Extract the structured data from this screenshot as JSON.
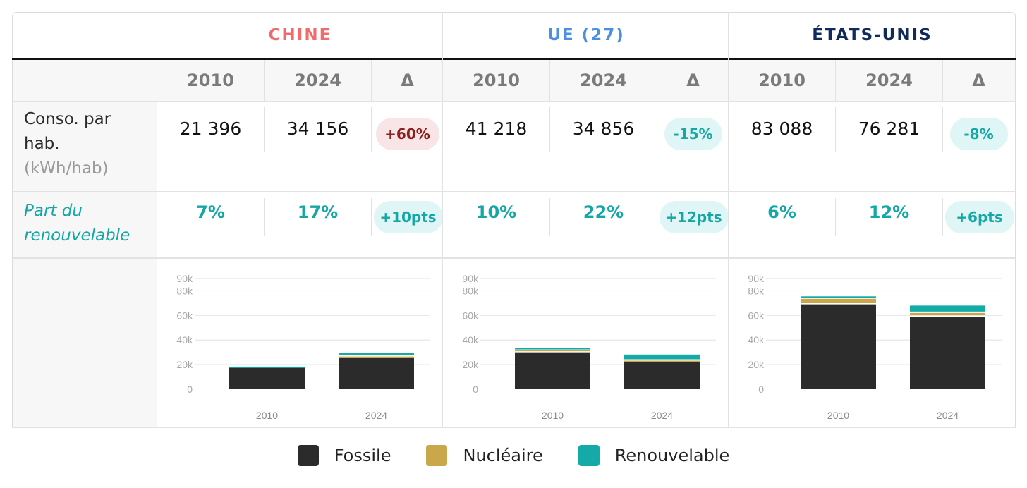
{
  "regions": [
    {
      "name": "CHINE",
      "color": "#f06b6b",
      "years": [
        "2010",
        "2024",
        "Δ"
      ],
      "conso": [
        "21 396",
        "34 156"
      ],
      "conso_delta": "+60%",
      "conso_delta_bg": "#f9e5e5",
      "conso_delta_color": "#8b1e1e",
      "part": [
        "7%",
        "17%"
      ],
      "part_delta": "+10pts"
    },
    {
      "name": "UE (27)",
      "color": "#4a8fe0",
      "years": [
        "2010",
        "2024",
        "Δ"
      ],
      "conso": [
        "41 218",
        "34 856"
      ],
      "conso_delta": "-15%",
      "conso_delta_bg": "#e0f5f5",
      "conso_delta_color": "#15a6a6",
      "part": [
        "10%",
        "22%"
      ],
      "part_delta": "+12pts"
    },
    {
      "name": "ÉTATS-UNIS",
      "color": "#0f2a5c",
      "years": [
        "2010",
        "2024",
        "Δ"
      ],
      "conso": [
        "83 088",
        "76 281"
      ],
      "conso_delta": "-8%",
      "conso_delta_bg": "#e0f5f5",
      "conso_delta_color": "#15a6a6",
      "part": [
        "6%",
        "12%"
      ],
      "part_delta": "+6pts"
    }
  ],
  "rows": {
    "conso_label_line1": "Conso. par",
    "conso_label_line2": "hab.",
    "conso_unit": "(kWh/hab)",
    "part_label_line1": "Part du",
    "part_label_line2": "renouvelable"
  },
  "pill_teal_bg": "#e0f5f5",
  "pill_teal_color": "#15a6a6",
  "legend": [
    {
      "label": "Fossile",
      "color": "#2b2b2b"
    },
    {
      "label": "Nucléaire",
      "color": "#c9a74a"
    },
    {
      "label": "Renouvelable",
      "color": "#13aaa8"
    }
  ],
  "chart_data": [
    {
      "type": "bar",
      "stacked": true,
      "region": "CHINE",
      "categories": [
        "2010",
        "2024"
      ],
      "series": [
        {
          "name": "Fossile",
          "values": [
            18000,
            26000
          ]
        },
        {
          "name": "Nucléaire",
          "values": [
            0,
            600
          ]
        },
        {
          "name": "Renouvelable",
          "values": [
            400,
            3000
          ]
        }
      ],
      "ylim": [
        0,
        90000
      ],
      "yticks": [
        "0",
        "20k",
        "40k",
        "60k",
        "80k",
        "90k"
      ],
      "grid": true
    },
    {
      "type": "bar",
      "stacked": true,
      "region": "UE (27)",
      "categories": [
        "2010",
        "2024"
      ],
      "series": [
        {
          "name": "Fossile",
          "values": [
            30000,
            22000
          ]
        },
        {
          "name": "Nucléaire",
          "values": [
            2000,
            1200
          ]
        },
        {
          "name": "Renouvelable",
          "values": [
            1500,
            5000
          ]
        }
      ],
      "ylim": [
        0,
        90000
      ],
      "yticks": [
        "0",
        "20k",
        "40k",
        "60k",
        "80k",
        "90k"
      ],
      "grid": true
    },
    {
      "type": "bar",
      "stacked": true,
      "region": "ÉTATS-UNIS",
      "categories": [
        "2010",
        "2024"
      ],
      "series": [
        {
          "name": "Fossile",
          "values": [
            69000,
            59000
          ]
        },
        {
          "name": "Nucléaire",
          "values": [
            4500,
            3000
          ]
        },
        {
          "name": "Renouvelable",
          "values": [
            2000,
            6000
          ]
        }
      ],
      "ylim": [
        0,
        90000
      ],
      "yticks": [
        "0",
        "20k",
        "40k",
        "60k",
        "80k",
        "90k"
      ],
      "grid": true
    }
  ]
}
